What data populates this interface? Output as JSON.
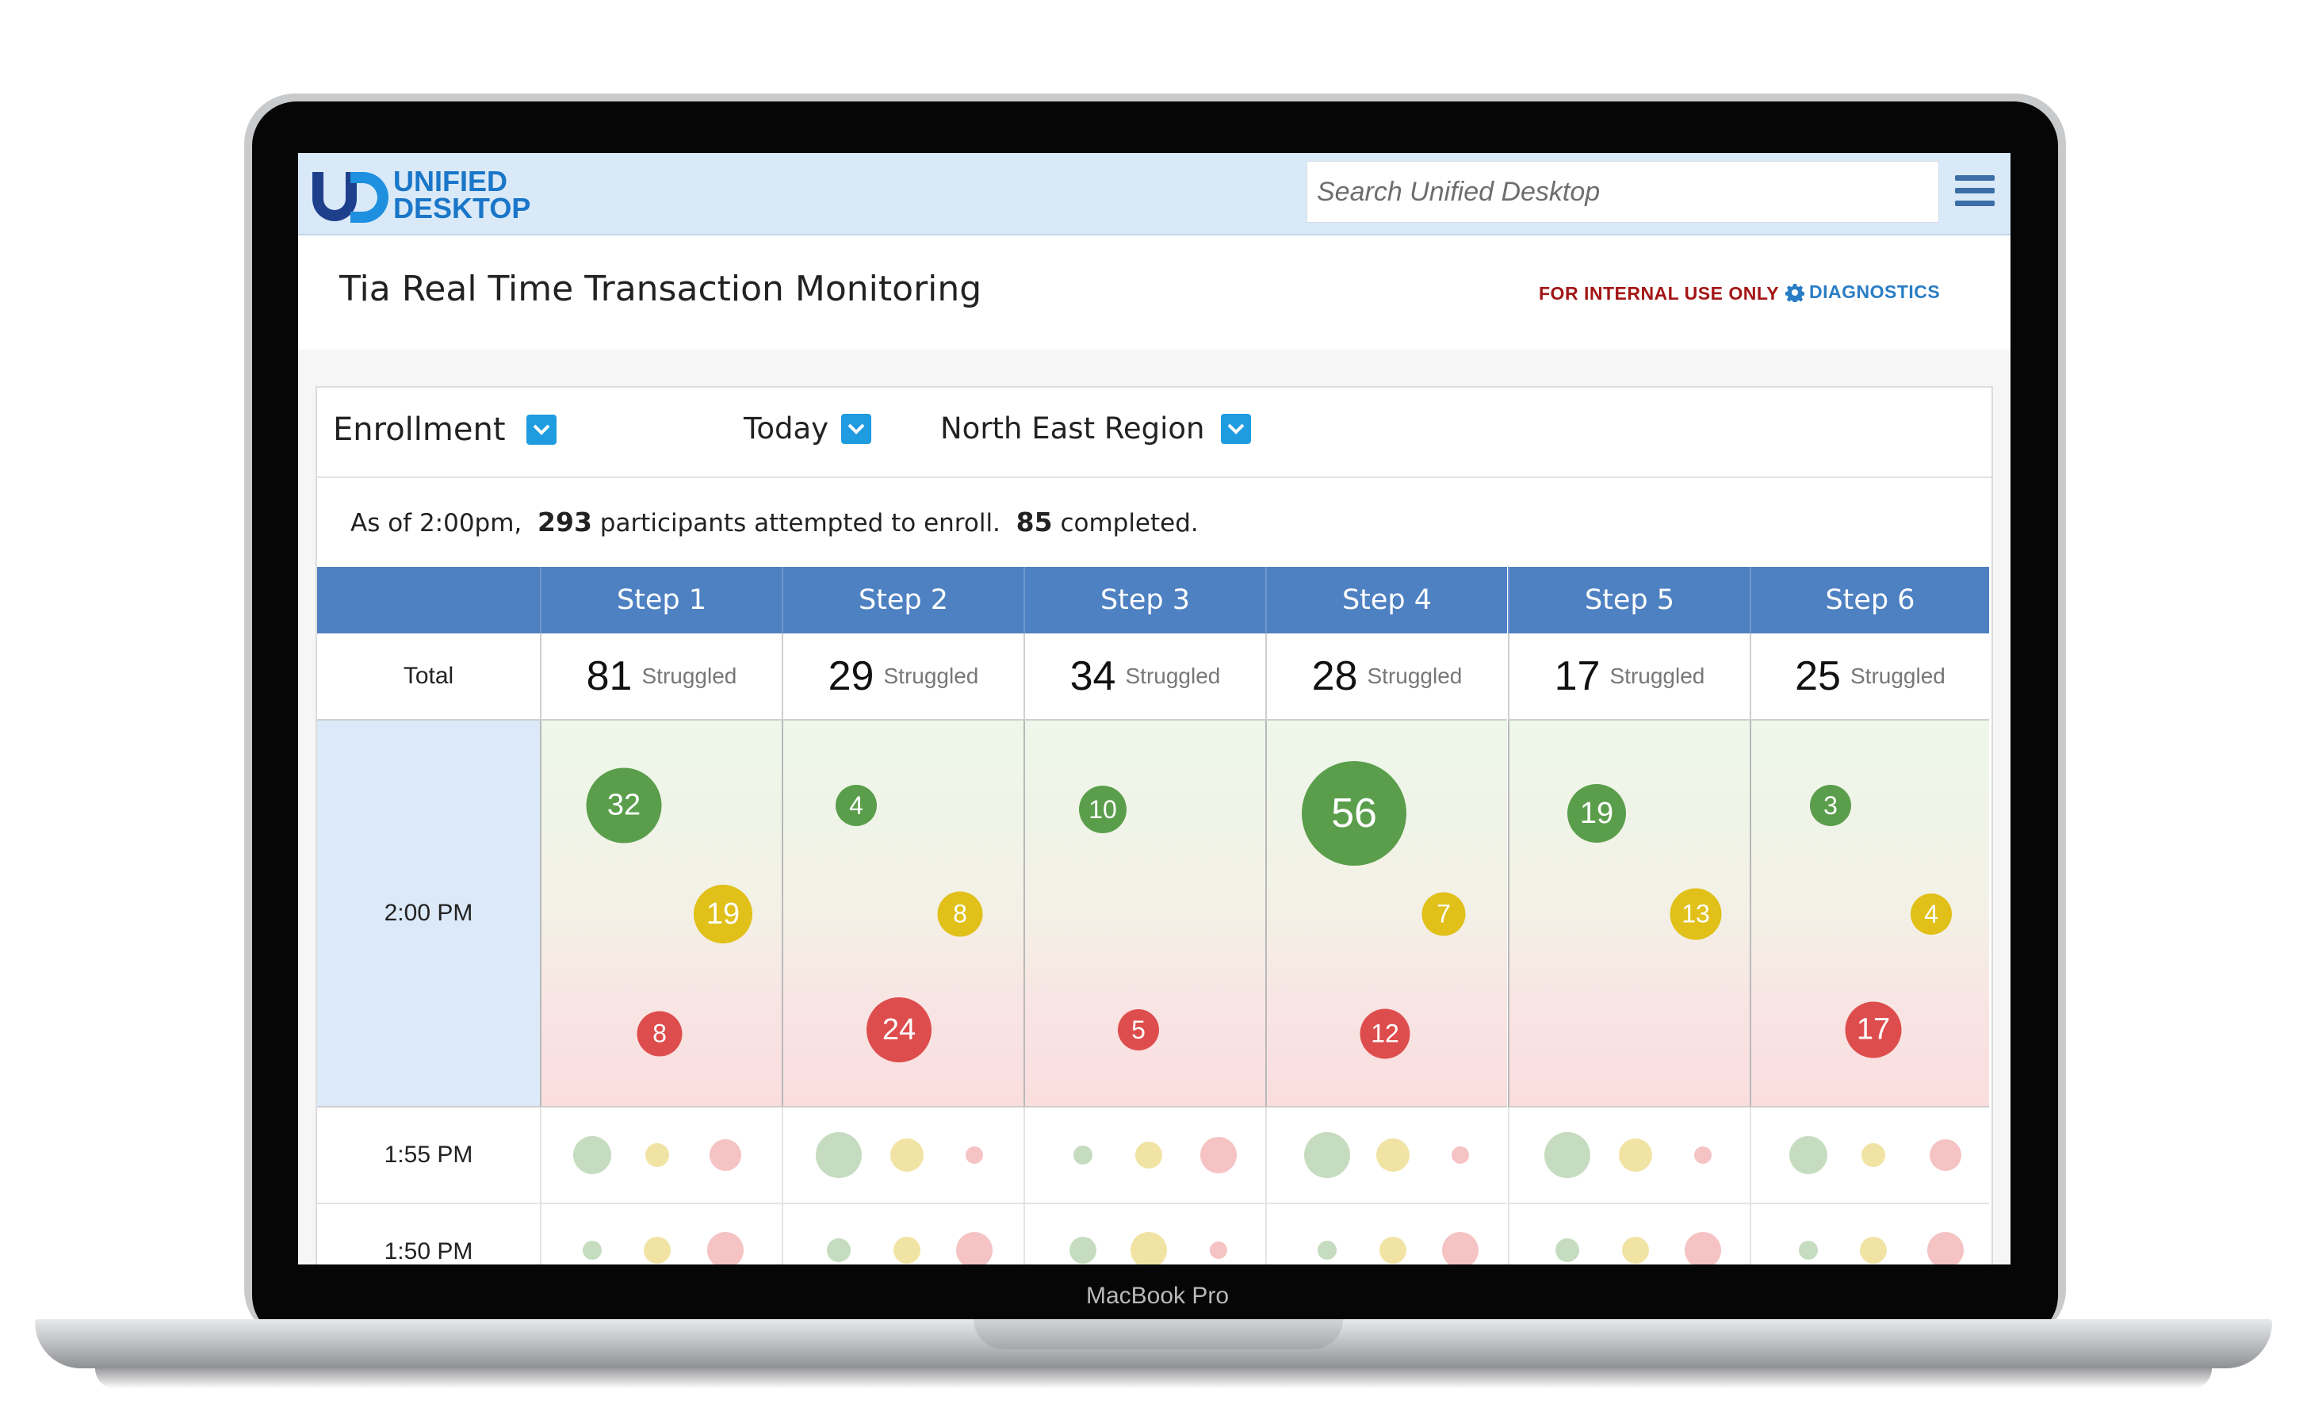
{
  "device": {
    "label": "MacBook Pro"
  },
  "header": {
    "logo": {
      "line1": "UNIFIED",
      "line2": "DESKTOP"
    },
    "search_placeholder": "Search Unified Desktop"
  },
  "page": {
    "title": "Tia Real Time Transaction Monitoring",
    "internal_label": "FOR INTERNAL USE ONLY",
    "diagnostics_label": "DIAGNOSTICS"
  },
  "filters": {
    "program": "Enrollment",
    "period": "Today",
    "region": "North East Region"
  },
  "summary": {
    "prefix": "As of 2:00pm,",
    "attempted": "293",
    "attempted_text": "participants attempted to enroll.",
    "completed": "85",
    "completed_text": "completed."
  },
  "table": {
    "total_label": "Total",
    "struggled_label": "Struggled",
    "current_time": "2:00 PM",
    "steps": [
      {
        "label": "Step 1",
        "total": "81",
        "green": "32",
        "yellow": "19",
        "red": "8"
      },
      {
        "label": "Step 2",
        "total": "29",
        "green": "4",
        "yellow": "8",
        "red": "24"
      },
      {
        "label": "Step 3",
        "total": "34",
        "green": "10",
        "yellow": "",
        "red": "5"
      },
      {
        "label": "Step 4",
        "total": "28",
        "green": "56",
        "yellow": "7",
        "red": "12"
      },
      {
        "label": "Step 5",
        "total": "17",
        "green": "19",
        "yellow": "13",
        "red": ""
      },
      {
        "label": "Step 6",
        "total": "25",
        "green": "3",
        "yellow": "4",
        "red": "17"
      }
    ],
    "history_times": [
      "1:55 PM",
      "1:50 PM"
    ]
  },
  "colors": {
    "header_blue": "#4e81c1",
    "green": "#5a9e4b",
    "yellow": "#e0c019",
    "red": "#de4d4d",
    "internal_red": "#a31515",
    "link_blue": "#2a7dc4"
  }
}
